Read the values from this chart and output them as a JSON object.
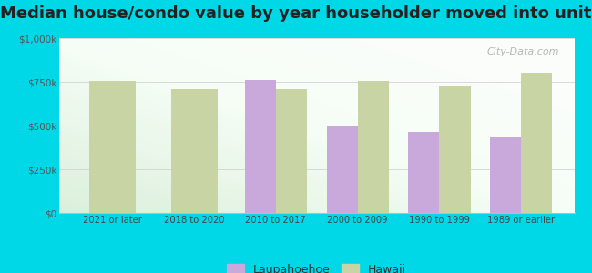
{
  "title": "Median house/condo value by year householder moved into unit",
  "categories": [
    "2021 or later",
    "2018 to 2020",
    "2010 to 2017",
    "2000 to 2009",
    "1990 to 1999",
    "1989 or earlier"
  ],
  "laupahoehoe": [
    null,
    null,
    762000,
    500000,
    462000,
    432000
  ],
  "hawaii": [
    755000,
    710000,
    710000,
    755000,
    730000,
    800000
  ],
  "laupahoehoe_color": "#c9a8dc",
  "hawaii_color": "#c8d4a4",
  "background_color": "#00d8e8",
  "ylim": [
    0,
    1000000
  ],
  "yticks": [
    0,
    250000,
    500000,
    750000,
    1000000
  ],
  "ytick_labels": [
    "$0",
    "$250k",
    "$500k",
    "$750k",
    "$1,000k"
  ],
  "legend_laupahoehoe": "Laupahoehoe",
  "legend_hawaii": "Hawaii",
  "watermark": "City-Data.com",
  "bar_width": 0.38,
  "title_fontsize": 13
}
